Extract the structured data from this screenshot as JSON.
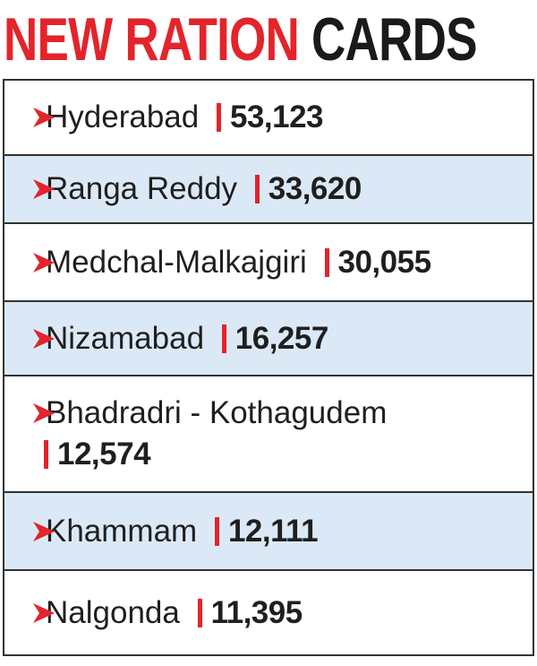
{
  "title": {
    "red": "NEW RATION",
    "black": "CARDS"
  },
  "rows": [
    {
      "name": "Hyderabad",
      "value": "53,123"
    },
    {
      "name": "Ranga Reddy",
      "value": "33,620"
    },
    {
      "name": "Medchal-Malkajgiri",
      "value": "30,055"
    },
    {
      "name": "Nizamabad",
      "value": "16,257"
    },
    {
      "name": "Bhadradri - Kothagudem",
      "value": "12,574"
    },
    {
      "name": "Khammam",
      "value": "12,111"
    },
    {
      "name": "Nalgonda",
      "value": "11,395"
    }
  ]
}
